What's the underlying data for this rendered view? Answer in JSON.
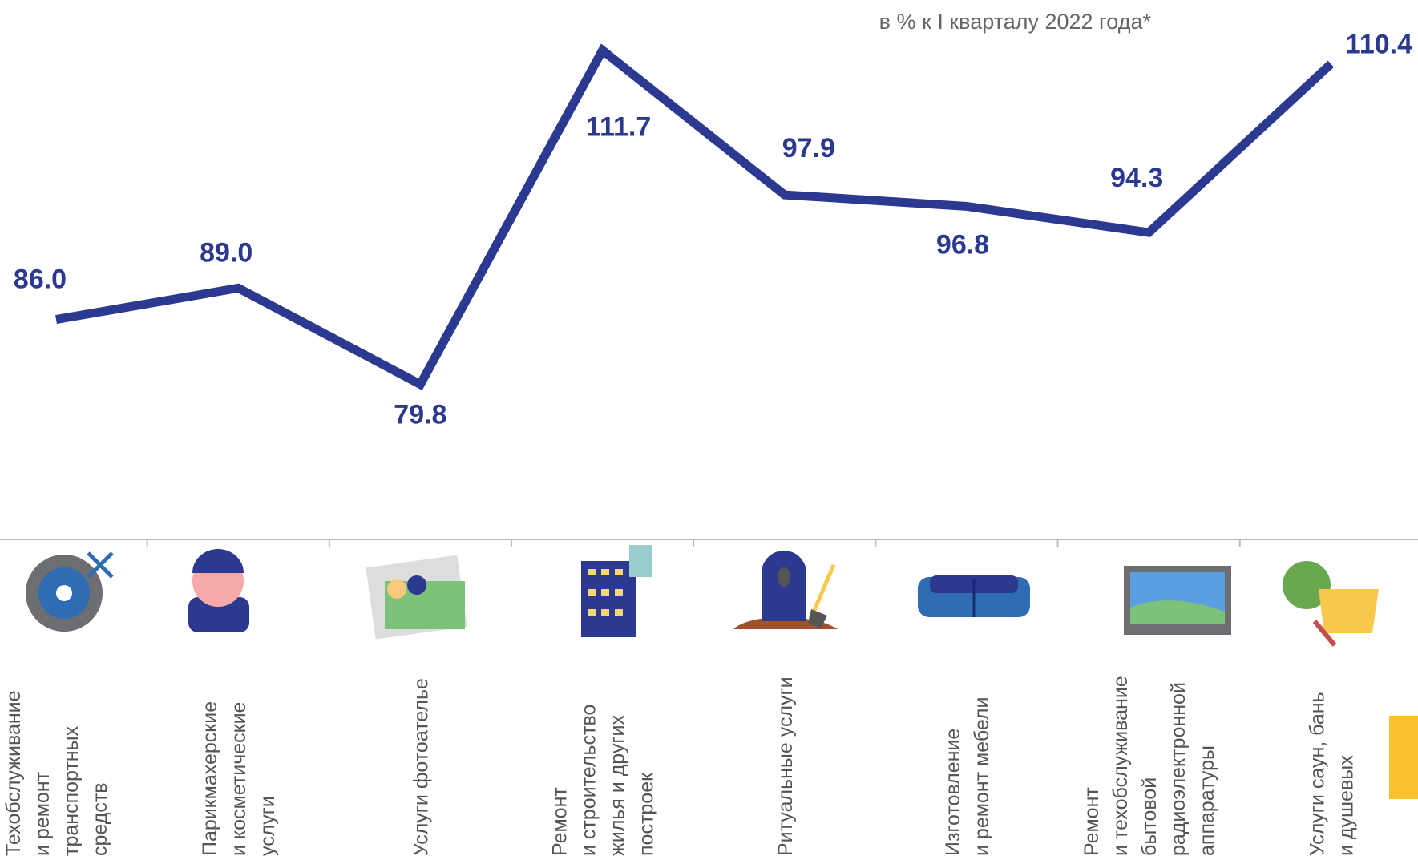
{
  "chart_data": {
    "type": "line",
    "subtitle": "в % к I кварталу 2022 года*",
    "categories": [
      "Техобслуживание\nи ремонт\nтранспортных\nсредств",
      "Парикмахерские\nи косметические\nуслуги",
      "Услуги фотоателье",
      "Ремонт\nи строительство\nжилья и других\nпостроек",
      "Ритуальные услуги",
      "Изготовление\nи ремонт мебели",
      "Ремонт\nи техобслуживание\nбытовой\nрадиоэлектронной\nаппаратуры",
      "Услуги саун, бань\nи душевых"
    ],
    "values": [
      86.0,
      89.0,
      79.8,
      111.7,
      97.9,
      96.8,
      94.3,
      110.4
    ],
    "value_labels": [
      "86.0",
      "89.0",
      "79.8",
      "111.7",
      "97.9",
      "96.8",
      "94.3",
      "110.4"
    ],
    "color": "#2b3990",
    "ylim": [
      65,
      116.5
    ],
    "grid": false
  }
}
